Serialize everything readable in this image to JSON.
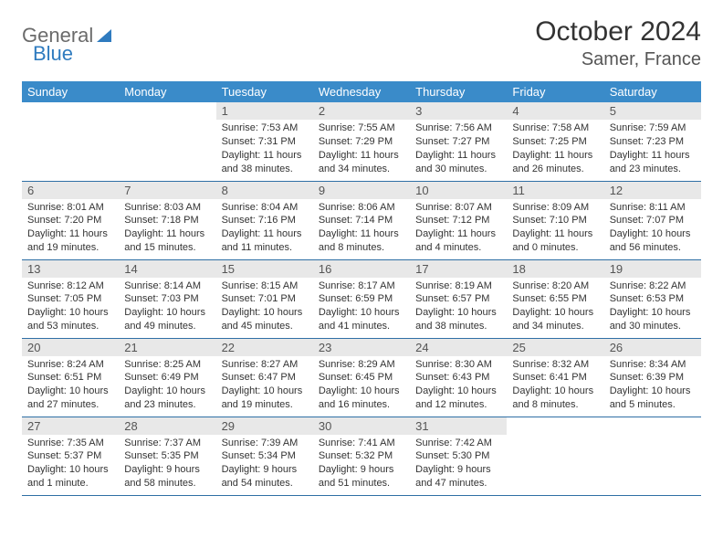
{
  "brand": {
    "part1": "General",
    "part2": "Blue"
  },
  "title": {
    "month": "October 2024",
    "location": "Samer, France"
  },
  "colors": {
    "header_bg": "#3a8bc9",
    "header_text": "#ffffff",
    "daynum_bg": "#e8e8e8",
    "daynum_text": "#555555",
    "cell_border": "#2f6fa5",
    "body_text": "#333333",
    "logo_gray": "#6b6b6b",
    "logo_blue": "#2f7bbf"
  },
  "daysOfWeek": [
    "Sunday",
    "Monday",
    "Tuesday",
    "Wednesday",
    "Thursday",
    "Friday",
    "Saturday"
  ],
  "layout": {
    "leading_blanks": 2,
    "trailing_blanks": 2,
    "columns": 7,
    "rows": 5
  },
  "days": [
    {
      "n": "1",
      "sunrise": "7:53 AM",
      "sunset": "7:31 PM",
      "daylight": "11 hours and 38 minutes."
    },
    {
      "n": "2",
      "sunrise": "7:55 AM",
      "sunset": "7:29 PM",
      "daylight": "11 hours and 34 minutes."
    },
    {
      "n": "3",
      "sunrise": "7:56 AM",
      "sunset": "7:27 PM",
      "daylight": "11 hours and 30 minutes."
    },
    {
      "n": "4",
      "sunrise": "7:58 AM",
      "sunset": "7:25 PM",
      "daylight": "11 hours and 26 minutes."
    },
    {
      "n": "5",
      "sunrise": "7:59 AM",
      "sunset": "7:23 PM",
      "daylight": "11 hours and 23 minutes."
    },
    {
      "n": "6",
      "sunrise": "8:01 AM",
      "sunset": "7:20 PM",
      "daylight": "11 hours and 19 minutes."
    },
    {
      "n": "7",
      "sunrise": "8:03 AM",
      "sunset": "7:18 PM",
      "daylight": "11 hours and 15 minutes."
    },
    {
      "n": "8",
      "sunrise": "8:04 AM",
      "sunset": "7:16 PM",
      "daylight": "11 hours and 11 minutes."
    },
    {
      "n": "9",
      "sunrise": "8:06 AM",
      "sunset": "7:14 PM",
      "daylight": "11 hours and 8 minutes."
    },
    {
      "n": "10",
      "sunrise": "8:07 AM",
      "sunset": "7:12 PM",
      "daylight": "11 hours and 4 minutes."
    },
    {
      "n": "11",
      "sunrise": "8:09 AM",
      "sunset": "7:10 PM",
      "daylight": "11 hours and 0 minutes."
    },
    {
      "n": "12",
      "sunrise": "8:11 AM",
      "sunset": "7:07 PM",
      "daylight": "10 hours and 56 minutes."
    },
    {
      "n": "13",
      "sunrise": "8:12 AM",
      "sunset": "7:05 PM",
      "daylight": "10 hours and 53 minutes."
    },
    {
      "n": "14",
      "sunrise": "8:14 AM",
      "sunset": "7:03 PM",
      "daylight": "10 hours and 49 minutes."
    },
    {
      "n": "15",
      "sunrise": "8:15 AM",
      "sunset": "7:01 PM",
      "daylight": "10 hours and 45 minutes."
    },
    {
      "n": "16",
      "sunrise": "8:17 AM",
      "sunset": "6:59 PM",
      "daylight": "10 hours and 41 minutes."
    },
    {
      "n": "17",
      "sunrise": "8:19 AM",
      "sunset": "6:57 PM",
      "daylight": "10 hours and 38 minutes."
    },
    {
      "n": "18",
      "sunrise": "8:20 AM",
      "sunset": "6:55 PM",
      "daylight": "10 hours and 34 minutes."
    },
    {
      "n": "19",
      "sunrise": "8:22 AM",
      "sunset": "6:53 PM",
      "daylight": "10 hours and 30 minutes."
    },
    {
      "n": "20",
      "sunrise": "8:24 AM",
      "sunset": "6:51 PM",
      "daylight": "10 hours and 27 minutes."
    },
    {
      "n": "21",
      "sunrise": "8:25 AM",
      "sunset": "6:49 PM",
      "daylight": "10 hours and 23 minutes."
    },
    {
      "n": "22",
      "sunrise": "8:27 AM",
      "sunset": "6:47 PM",
      "daylight": "10 hours and 19 minutes."
    },
    {
      "n": "23",
      "sunrise": "8:29 AM",
      "sunset": "6:45 PM",
      "daylight": "10 hours and 16 minutes."
    },
    {
      "n": "24",
      "sunrise": "8:30 AM",
      "sunset": "6:43 PM",
      "daylight": "10 hours and 12 minutes."
    },
    {
      "n": "25",
      "sunrise": "8:32 AM",
      "sunset": "6:41 PM",
      "daylight": "10 hours and 8 minutes."
    },
    {
      "n": "26",
      "sunrise": "8:34 AM",
      "sunset": "6:39 PM",
      "daylight": "10 hours and 5 minutes."
    },
    {
      "n": "27",
      "sunrise": "7:35 AM",
      "sunset": "5:37 PM",
      "daylight": "10 hours and 1 minute."
    },
    {
      "n": "28",
      "sunrise": "7:37 AM",
      "sunset": "5:35 PM",
      "daylight": "9 hours and 58 minutes."
    },
    {
      "n": "29",
      "sunrise": "7:39 AM",
      "sunset": "5:34 PM",
      "daylight": "9 hours and 54 minutes."
    },
    {
      "n": "30",
      "sunrise": "7:41 AM",
      "sunset": "5:32 PM",
      "daylight": "9 hours and 51 minutes."
    },
    {
      "n": "31",
      "sunrise": "7:42 AM",
      "sunset": "5:30 PM",
      "daylight": "9 hours and 47 minutes."
    }
  ],
  "labels": {
    "sunrise": "Sunrise: ",
    "sunset": "Sunset: ",
    "daylight": "Daylight: "
  }
}
